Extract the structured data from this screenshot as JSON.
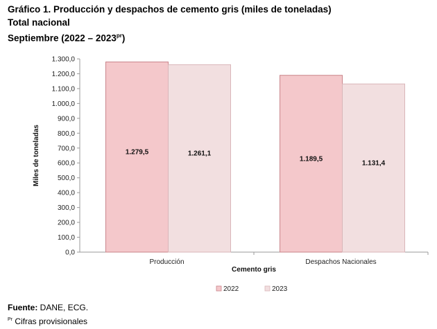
{
  "header": {
    "title": "Gráfico 1. Producción y despachos de cemento gris (miles de toneladas)",
    "subtitle": "Total nacional",
    "period_prefix": "Septiembre (2022 – 2023",
    "period_sup": "pr",
    "period_suffix": ")"
  },
  "chart_data": {
    "type": "bar",
    "categories": [
      "Producción",
      "Despachos Nacionales"
    ],
    "series": [
      {
        "name": "2022",
        "values": [
          1279.5,
          1189.5
        ],
        "labels": [
          "1.279,5",
          "1.189,5"
        ],
        "color": "#f4c8cb",
        "edge": "#c9848a"
      },
      {
        "name": "2023",
        "values": [
          1261.1,
          1131.4
        ],
        "labels": [
          "1.261,1",
          "1.131,4"
        ],
        "color": "#f2dfe0",
        "edge": "#d9b6b9"
      }
    ],
    "xlabel": "Cemento gris",
    "ylabel": "Miles de toneladas",
    "ylim": [
      0,
      1300
    ],
    "yticks": [
      0,
      100,
      200,
      300,
      400,
      500,
      600,
      700,
      800,
      900,
      1000,
      1100,
      1200,
      1300
    ],
    "ytick_labels": [
      "0,0",
      "100,0",
      "200,0",
      "300,0",
      "400,0",
      "500,0",
      "600,0",
      "700,0",
      "800,0",
      "900,0",
      "1.000,0",
      "1.100,0",
      "1.200,0",
      "1.300,0"
    ],
    "grid": false,
    "legend": "bottom"
  },
  "footer": {
    "source_label": "Fuente:",
    "source_text": " DANE, ECG.",
    "note_sup": "Pr",
    "note_text": " Cifras provisionales"
  }
}
